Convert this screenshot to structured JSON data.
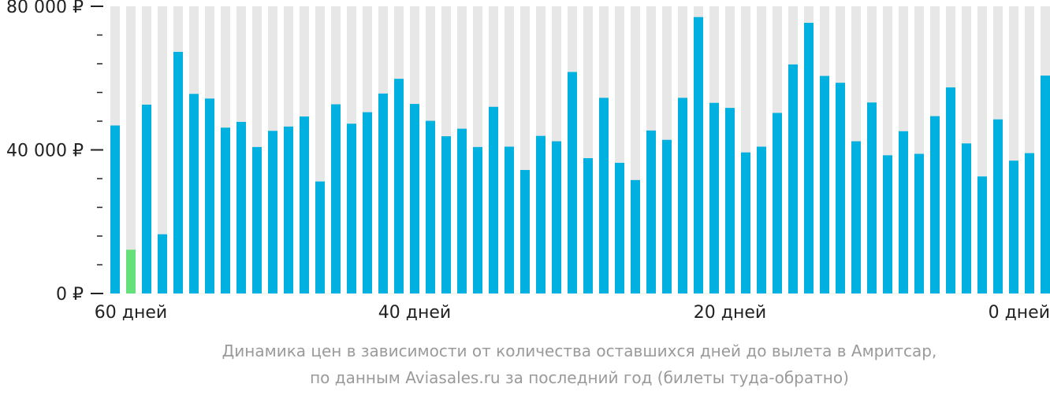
{
  "chart_data": {
    "type": "bar",
    "ylim": [
      0,
      80000
    ],
    "y_ticks": [
      {
        "value": 0,
        "label": "0 ₽"
      },
      {
        "value": 40000,
        "label": "40 000 ₽"
      },
      {
        "value": 80000,
        "label": "80 000 ₽"
      }
    ],
    "x_tick_labels": [
      {
        "index": 2,
        "label": "60 дней"
      },
      {
        "index": 20,
        "label": "40 дней"
      },
      {
        "index": 40,
        "label": "20 дней"
      },
      {
        "index": 59,
        "label": "0 дней"
      }
    ],
    "values": [
      46800,
      12200,
      52600,
      16500,
      67300,
      55600,
      54300,
      46200,
      47800,
      40800,
      45300,
      46500,
      49300,
      31200,
      52700,
      47300,
      50500,
      55700,
      59800,
      52800,
      48100,
      43800,
      45900,
      40800,
      52000,
      40900,
      34400,
      43900,
      42400,
      61700,
      37700,
      54500,
      36400,
      31600,
      45400,
      42800,
      54500,
      77000,
      53100,
      51700,
      39300,
      40900,
      50300,
      63800,
      75400,
      60600,
      58700,
      42400,
      53200,
      38500,
      45200,
      38900,
      49400,
      57400,
      41800,
      32600,
      48500,
      37000,
      39100,
      60700
    ],
    "highlight_index": 1,
    "grid": false,
    "colors": {
      "bar": "#00b0de",
      "highlight": "#66e07b",
      "track": "#e7e7e7",
      "axis": "#222222"
    }
  },
  "caption": {
    "line1": "Динамика цен в зависимости от количества оставшихся дней до вылета в Амритсар,",
    "line2": "по данным Aviasales.ru за последний год (билеты туда-обратно)"
  }
}
